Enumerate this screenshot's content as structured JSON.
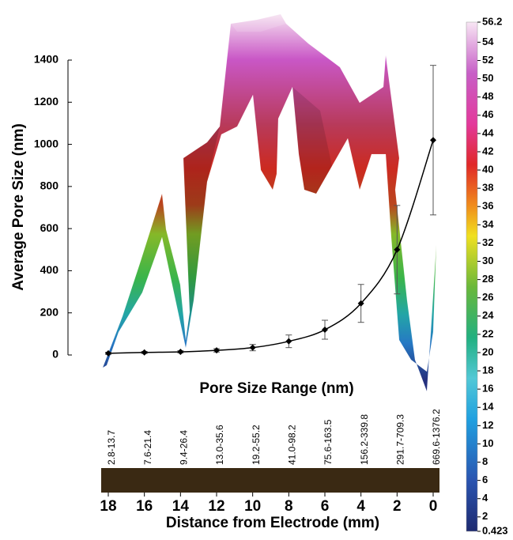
{
  "chart_data": {
    "type": "line",
    "ylabel": "Average Pore Size (nm)",
    "xlabel": "Distance from Electrode (mm)",
    "category_label": "Pore Size Range (nm)",
    "categories": [
      "2.8-13.7",
      "7.6-21.4",
      "9.4-26.4",
      "13.0-35.6",
      "19.2-55.2",
      "41.0-98.2",
      "75.6-163.5",
      "156.2-339.8",
      "291.7-709.3",
      "669.6-1376.2"
    ],
    "x": [
      18,
      16,
      14,
      12,
      10,
      8,
      6,
      4,
      2,
      0
    ],
    "xlim": [
      18,
      0
    ],
    "xticks": [
      18,
      16,
      14,
      12,
      10,
      8,
      6,
      4,
      2,
      0
    ],
    "ylim": [
      0,
      1400
    ],
    "yticks": [
      0,
      200,
      400,
      600,
      800,
      1000,
      1200,
      1400
    ],
    "series": [
      {
        "color": "#000000",
        "values": [
          8,
          12,
          15,
          22,
          35,
          65,
          120,
          245,
          500,
          1020
        ],
        "errors": [
          5,
          5,
          5,
          8,
          15,
          30,
          45,
          90,
          210,
          355
        ]
      }
    ],
    "colorbar": {
      "lim": [
        0.423,
        56.2
      ],
      "ticks": [
        56.2,
        54,
        52,
        50,
        48,
        46,
        44,
        42,
        40,
        38,
        36,
        34,
        32,
        30,
        28,
        26,
        24,
        22,
        20,
        18,
        16,
        14,
        12,
        10,
        8,
        6,
        4,
        2,
        0.423
      ]
    }
  }
}
